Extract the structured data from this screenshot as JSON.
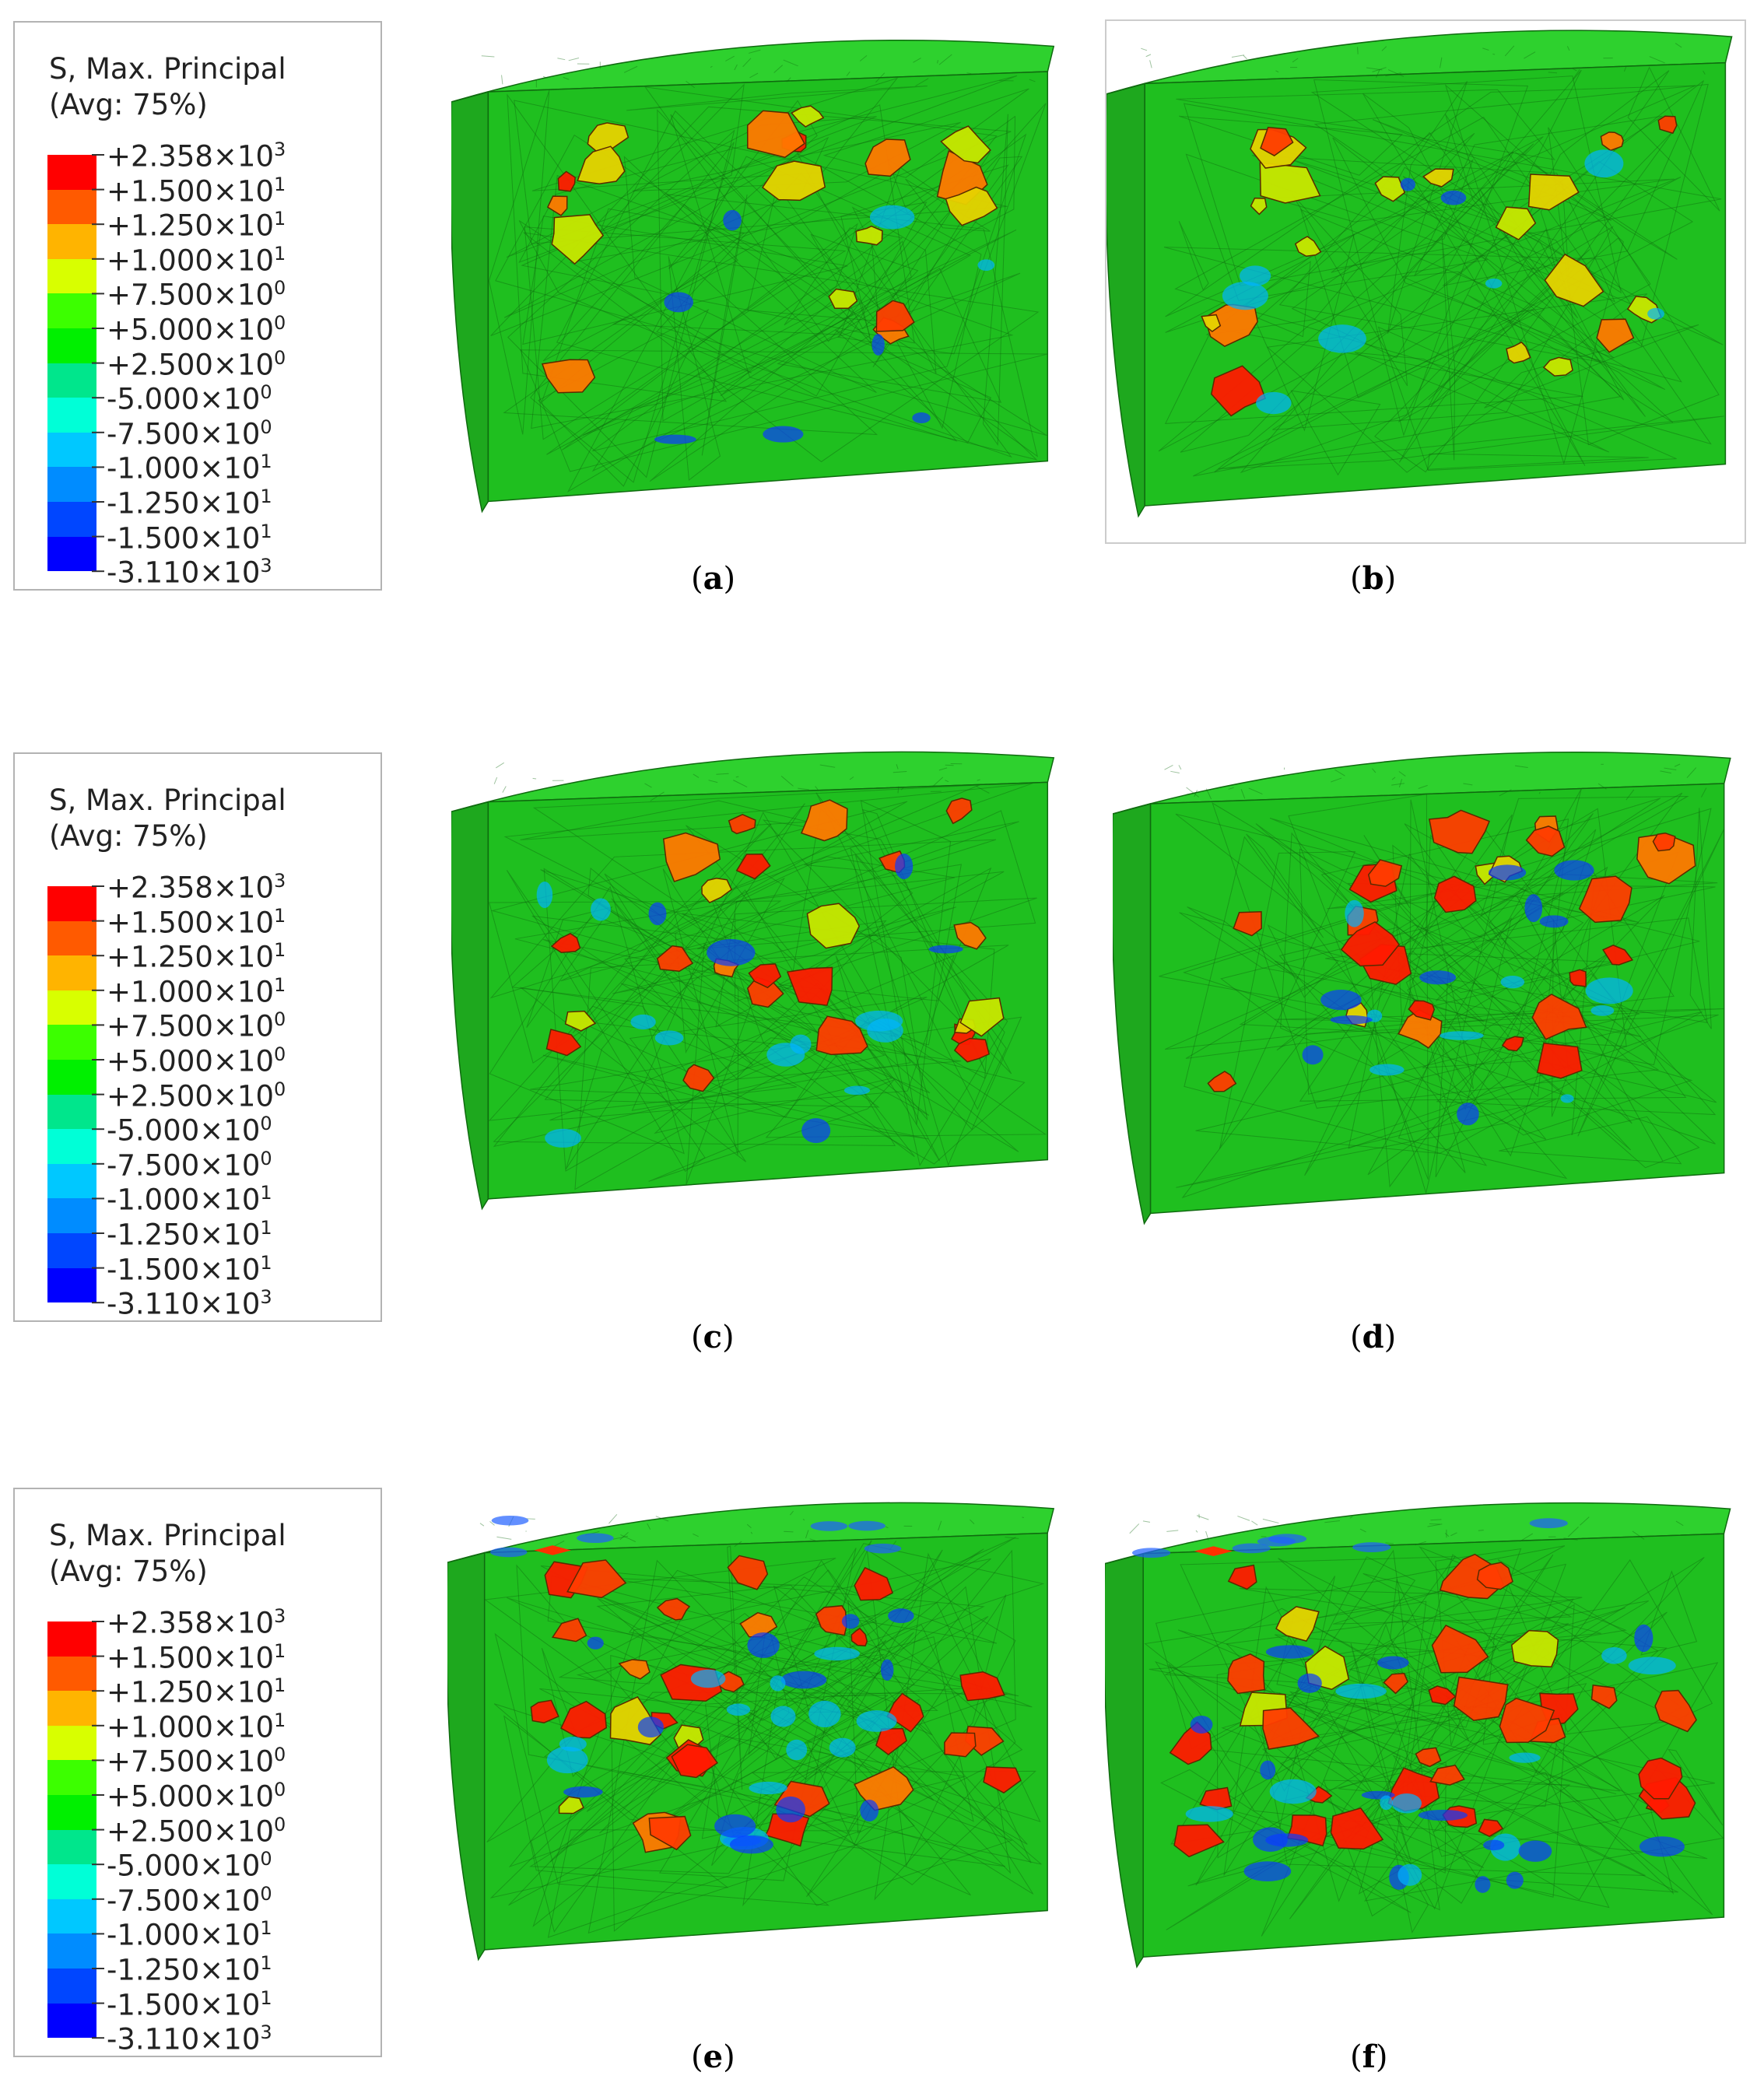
{
  "legend": {
    "title_line1": "S, Max. Principal",
    "title_line2": "(Avg: 75%)",
    "levels": [
      {
        "mantissa": "+2.358×10",
        "exp": "3"
      },
      {
        "mantissa": "+1.500×10",
        "exp": "1"
      },
      {
        "mantissa": "+1.250×10",
        "exp": "1"
      },
      {
        "mantissa": "+1.000×10",
        "exp": "1"
      },
      {
        "mantissa": "+7.500×10",
        "exp": "0"
      },
      {
        "mantissa": "+5.000×10",
        "exp": "0"
      },
      {
        "mantissa": "+2.500×10",
        "exp": "0"
      },
      {
        "mantissa": "-5.000×10",
        "exp": "0"
      },
      {
        "mantissa": "-7.500×10",
        "exp": "0"
      },
      {
        "mantissa": "-1.000×10",
        "exp": "1"
      },
      {
        "mantissa": "-1.250×10",
        "exp": "1"
      },
      {
        "mantissa": "-1.500×10",
        "exp": "1"
      },
      {
        "mantissa": "-3.110×10",
        "exp": "3"
      }
    ],
    "band_colors": [
      "#ff0000",
      "#ff5a00",
      "#ffb400",
      "#d8ff00",
      "#3cff00",
      "#00f000",
      "#00e68c",
      "#00ffd7",
      "#00c8ff",
      "#008cff",
      "#0046ff",
      "#0000ff"
    ]
  },
  "panels": [
    {
      "label": "a",
      "intensity": 0.25
    },
    {
      "label": "b",
      "intensity": 0.3
    },
    {
      "label": "c",
      "intensity": 0.5
    },
    {
      "label": "d",
      "intensity": 0.55
    },
    {
      "label": "e",
      "intensity": 0.85
    },
    {
      "label": "f",
      "intensity": 0.9
    }
  ],
  "colors": {
    "mesh_green": "#1fbf1f",
    "mesh_dark": "#0f6a0f",
    "top_green": "#2ed12e",
    "side_green": "#1ea81e"
  }
}
